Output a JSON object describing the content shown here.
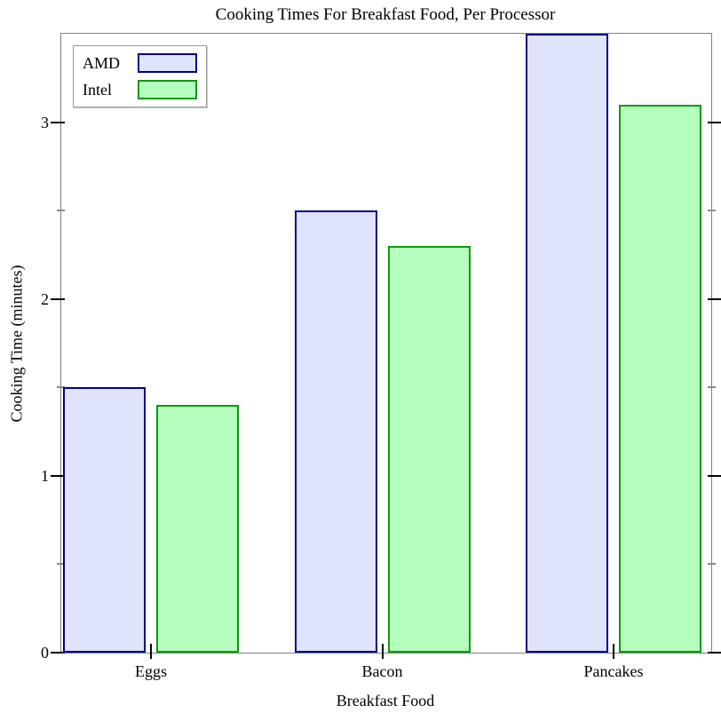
{
  "chart_data": {
    "type": "bar",
    "title": "Cooking Times For Breakfast Food, Per Processor",
    "xlabel": "Breakfast Food",
    "ylabel": "Cooking Time (minutes)",
    "categories": [
      "Eggs",
      "Bacon",
      "Pancakes"
    ],
    "series": [
      {
        "name": "AMD",
        "values": [
          1.5,
          2.5,
          3.5
        ],
        "fill": "#DFE3FC",
        "stroke": "#00008B"
      },
      {
        "name": "Intel",
        "values": [
          1.4,
          2.3,
          3.1
        ],
        "fill": "#B4FEBE",
        "stroke": "#0C9A0C"
      }
    ],
    "ylim": [
      0,
      3.5
    ],
    "yticks_major": [
      0,
      1,
      2,
      3
    ],
    "yticks_minor": [
      0.5,
      1.5,
      2.5
    ],
    "grid": false,
    "legend_position": "top-left",
    "frame_color": "#808080"
  }
}
